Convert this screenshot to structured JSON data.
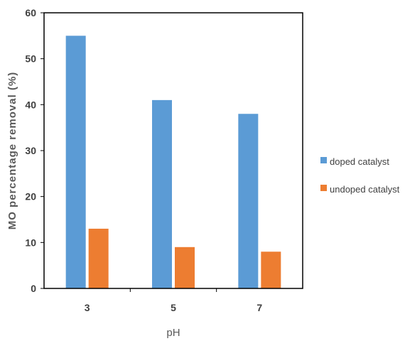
{
  "chart_data": {
    "type": "bar",
    "categories": [
      "3",
      "5",
      "7"
    ],
    "series": [
      {
        "name": "doped catalyst",
        "values": [
          55,
          41,
          38
        ],
        "color": "#5B9BD5"
      },
      {
        "name": "undoped catalyst",
        "values": [
          13,
          9,
          8
        ],
        "color": "#ED7D31"
      }
    ],
    "xlabel": "pH",
    "ylabel": "MO percentage removal (%)",
    "ylim": [
      0,
      60
    ],
    "yticks": [
      "0",
      "10",
      "20",
      "30",
      "40",
      "50",
      "60"
    ],
    "grid": false,
    "legend_position": "right"
  }
}
